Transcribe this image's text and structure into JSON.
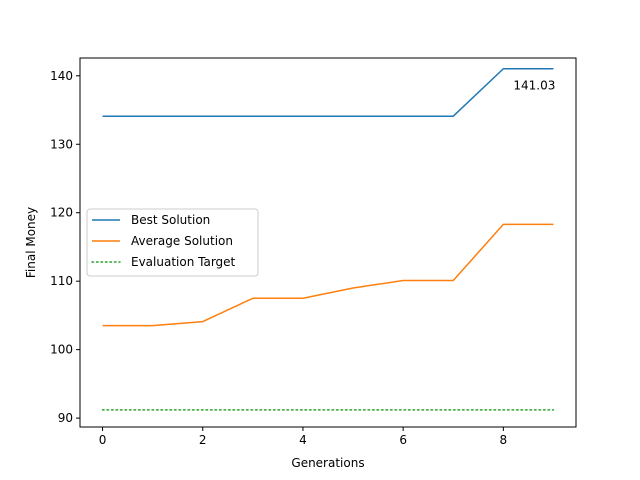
{
  "chart_data": {
    "type": "line",
    "title": "",
    "xlabel": "Generations",
    "ylabel": "Final Money",
    "xlim": [
      -0.45,
      9.45
    ],
    "ylim": [
      88.7,
      142.6
    ],
    "xticks": [
      0,
      2,
      4,
      6,
      8
    ],
    "yticks": [
      90,
      100,
      110,
      120,
      130,
      140
    ],
    "grid": false,
    "legend_position": "center-left",
    "x": [
      0,
      1,
      2,
      3,
      4,
      5,
      6,
      7,
      8,
      9
    ],
    "series": [
      {
        "name": "Best Solution",
        "color": "#1f77b4",
        "style": "solid",
        "values": [
          134.1,
          134.1,
          134.1,
          134.1,
          134.1,
          134.1,
          134.1,
          134.1,
          141.03,
          141.03
        ]
      },
      {
        "name": "Average Solution",
        "color": "#ff7f0e",
        "style": "solid",
        "values": [
          103.5,
          103.5,
          104.1,
          107.5,
          107.5,
          109.0,
          110.1,
          110.1,
          118.3,
          118.3
        ]
      },
      {
        "name": "Evaluation Target",
        "color": "#2ca02c",
        "style": "dotted",
        "values": [
          91.2,
          91.2,
          91.2,
          91.2,
          91.2,
          91.2,
          91.2,
          91.2,
          91.2,
          91.2
        ]
      }
    ],
    "annotations": [
      {
        "text": "141.03",
        "x": 8,
        "y": 141.03
      }
    ]
  }
}
